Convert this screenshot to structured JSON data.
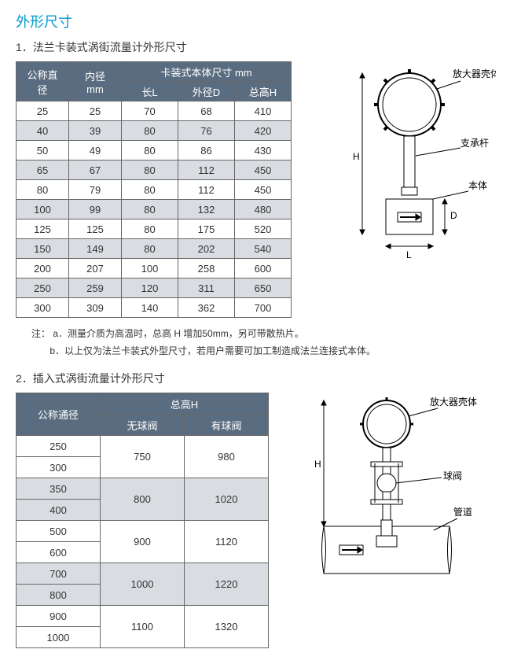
{
  "title": "外形尺寸",
  "section1_label": "1．法兰卡装式涡街流量计外形尺寸",
  "section2_label": "2．插入式涡街流量计外形尺寸",
  "notes": {
    "prefix": "注：",
    "a": "a．测量介质为高温时，总高 H 增加50mm，另可带散热片。",
    "b": "b．以上仅为法兰卡装式外型尺寸，若用户需要可加工制造成法兰连接式本体。"
  },
  "table1": {
    "header_top": {
      "col0": "公称直径",
      "col1": "内径 mm",
      "merged": "卡装式本体尺寸 mm"
    },
    "header_sub": {
      "col2": "长L",
      "col3": "外径D",
      "col4": "总高H"
    },
    "rows": [
      [
        "25",
        "25",
        "70",
        "68",
        "410"
      ],
      [
        "40",
        "39",
        "80",
        "76",
        "420"
      ],
      [
        "50",
        "49",
        "80",
        "86",
        "430"
      ],
      [
        "65",
        "67",
        "80",
        "112",
        "450"
      ],
      [
        "80",
        "79",
        "80",
        "112",
        "450"
      ],
      [
        "100",
        "99",
        "80",
        "132",
        "480"
      ],
      [
        "125",
        "125",
        "80",
        "175",
        "520"
      ],
      [
        "150",
        "149",
        "80",
        "202",
        "540"
      ],
      [
        "200",
        "207",
        "100",
        "258",
        "600"
      ],
      [
        "250",
        "259",
        "120",
        "311",
        "650"
      ],
      [
        "300",
        "309",
        "140",
        "362",
        "700"
      ]
    ],
    "alt_rows": [
      1,
      3,
      5,
      7,
      9
    ],
    "col_widths": [
      "50",
      "50",
      "55",
      "55",
      "55"
    ]
  },
  "table2": {
    "header_top": {
      "col0": "公称通径",
      "merged": "总高H"
    },
    "header_sub": {
      "col1": "无球阀",
      "col2": "有球阀"
    },
    "rows": [
      {
        "dn": "250",
        "h1": "750",
        "h2": "980",
        "span": 2
      },
      {
        "dn": "300"
      },
      {
        "dn": "350",
        "h1": "800",
        "h2": "1020",
        "span": 2
      },
      {
        "dn": "400"
      },
      {
        "dn": "500",
        "h1": "900",
        "h2": "1120",
        "span": 2
      },
      {
        "dn": "600"
      },
      {
        "dn": "700",
        "h1": "1000",
        "h2": "1220",
        "span": 2
      },
      {
        "dn": "800"
      },
      {
        "dn": "900",
        "h1": "1100",
        "h2": "1320",
        "span": 2
      },
      {
        "dn": "1000"
      }
    ],
    "alt_pairs": [
      1,
      3
    ],
    "col_widths": [
      "90",
      "90",
      "90"
    ]
  },
  "diagram1": {
    "labels": {
      "amp_housing": "放大器壳体",
      "support_rod": "支承杆",
      "body": "本体",
      "dim_H": "H",
      "dim_D": "D",
      "dim_L": "L",
      "arrow": "➡"
    },
    "colors": {
      "stroke": "#000000",
      "fill": "#ffffff"
    }
  },
  "diagram2": {
    "labels": {
      "amp_housing": "放大器壳体",
      "ball_valve": "球阀",
      "pipe": "管道",
      "dim_H": "H",
      "arrow": "➡"
    },
    "colors": {
      "stroke": "#000000",
      "fill": "#ffffff"
    }
  }
}
